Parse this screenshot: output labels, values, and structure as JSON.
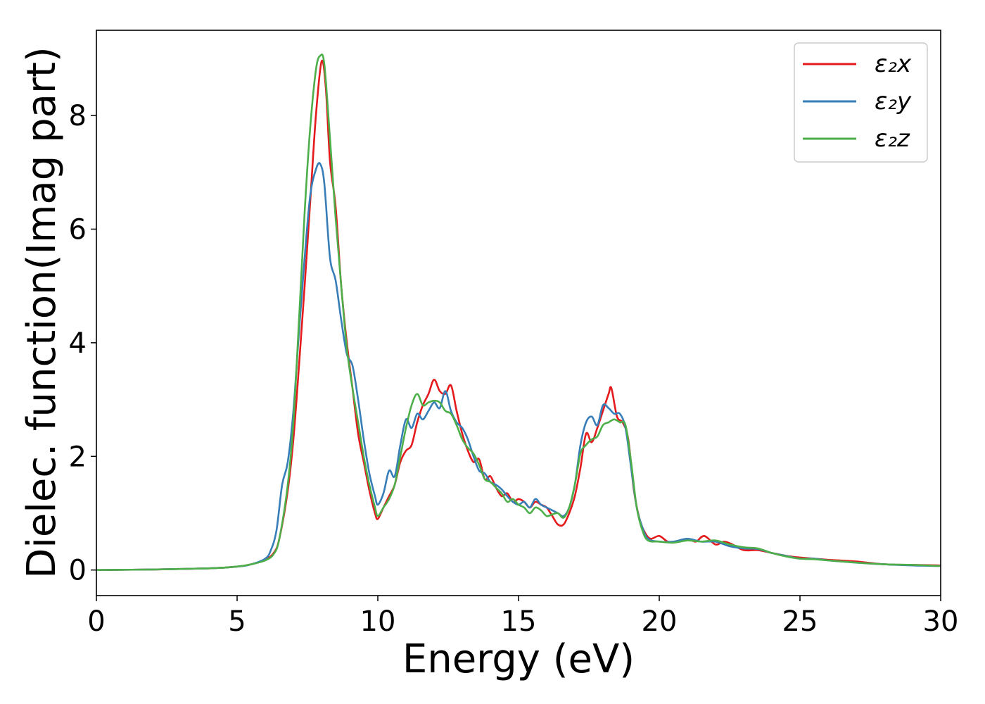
{
  "chart_data": {
    "type": "line",
    "title": "",
    "xlabel": "Energy (eV)",
    "ylabel": "Dielec. function(Imag part)",
    "xlim": [
      0,
      30
    ],
    "ylim": [
      -0.45,
      9.5
    ],
    "xticks": [
      0,
      5,
      10,
      15,
      20,
      25,
      30
    ],
    "yticks": [
      0,
      2,
      4,
      6,
      8
    ],
    "grid": false,
    "legend_position": "top-right",
    "series": [
      {
        "name": "ε₂x",
        "color": "#e41a1c",
        "points": [
          [
            0,
            0.0
          ],
          [
            2,
            0.01
          ],
          [
            4,
            0.03
          ],
          [
            5,
            0.06
          ],
          [
            5.5,
            0.1
          ],
          [
            6,
            0.18
          ],
          [
            6.3,
            0.3
          ],
          [
            6.5,
            0.55
          ],
          [
            6.8,
            1.4
          ],
          [
            7,
            2.3
          ],
          [
            7.2,
            3.6
          ],
          [
            7.4,
            5.0
          ],
          [
            7.6,
            6.5
          ],
          [
            7.8,
            8.0
          ],
          [
            8.0,
            8.95
          ],
          [
            8.15,
            8.5
          ],
          [
            8.3,
            7.2
          ],
          [
            8.5,
            6.4
          ],
          [
            8.7,
            5.0
          ],
          [
            8.9,
            4.0
          ],
          [
            9.1,
            3.2
          ],
          [
            9.3,
            2.4
          ],
          [
            9.5,
            1.9
          ],
          [
            9.7,
            1.4
          ],
          [
            9.9,
            1.0
          ],
          [
            10.0,
            0.9
          ],
          [
            10.2,
            1.1
          ],
          [
            10.4,
            1.3
          ],
          [
            10.6,
            1.5
          ],
          [
            10.8,
            1.9
          ],
          [
            11.0,
            2.1
          ],
          [
            11.2,
            2.2
          ],
          [
            11.4,
            2.6
          ],
          [
            11.6,
            2.9
          ],
          [
            11.8,
            3.1
          ],
          [
            12.0,
            3.35
          ],
          [
            12.2,
            3.15
          ],
          [
            12.4,
            3.1
          ],
          [
            12.6,
            3.25
          ],
          [
            12.8,
            2.8
          ],
          [
            13.0,
            2.4
          ],
          [
            13.2,
            2.1
          ],
          [
            13.4,
            1.9
          ],
          [
            13.6,
            1.95
          ],
          [
            13.8,
            1.6
          ],
          [
            14.0,
            1.65
          ],
          [
            14.2,
            1.45
          ],
          [
            14.4,
            1.3
          ],
          [
            14.6,
            1.35
          ],
          [
            14.8,
            1.2
          ],
          [
            15.0,
            1.25
          ],
          [
            15.2,
            1.2
          ],
          [
            15.4,
            1.1
          ],
          [
            15.6,
            1.2
          ],
          [
            15.8,
            1.15
          ],
          [
            16.0,
            1.1
          ],
          [
            16.2,
            0.95
          ],
          [
            16.4,
            0.8
          ],
          [
            16.6,
            0.8
          ],
          [
            16.8,
            1.0
          ],
          [
            17.0,
            1.3
          ],
          [
            17.2,
            1.8
          ],
          [
            17.4,
            2.4
          ],
          [
            17.6,
            2.25
          ],
          [
            17.8,
            2.5
          ],
          [
            18.0,
            2.8
          ],
          [
            18.2,
            3.1
          ],
          [
            18.3,
            3.2
          ],
          [
            18.5,
            2.7
          ],
          [
            18.7,
            2.6
          ],
          [
            18.9,
            2.3
          ],
          [
            19.1,
            1.4
          ],
          [
            19.3,
            0.9
          ],
          [
            19.5,
            0.65
          ],
          [
            19.7,
            0.55
          ],
          [
            20.0,
            0.6
          ],
          [
            20.3,
            0.5
          ],
          [
            20.6,
            0.5
          ],
          [
            21.0,
            0.55
          ],
          [
            21.3,
            0.5
          ],
          [
            21.6,
            0.6
          ],
          [
            22.0,
            0.45
          ],
          [
            22.3,
            0.5
          ],
          [
            22.6,
            0.45
          ],
          [
            23.0,
            0.35
          ],
          [
            23.5,
            0.35
          ],
          [
            24.0,
            0.3
          ],
          [
            24.5,
            0.25
          ],
          [
            25.0,
            0.22
          ],
          [
            25.5,
            0.2
          ],
          [
            26.0,
            0.18
          ],
          [
            27.0,
            0.15
          ],
          [
            28.0,
            0.1
          ],
          [
            29.0,
            0.09
          ],
          [
            30.0,
            0.08
          ]
        ]
      },
      {
        "name": "ε₂y",
        "color": "#377eb8",
        "points": [
          [
            0,
            0.0
          ],
          [
            2,
            0.01
          ],
          [
            4,
            0.03
          ],
          [
            5,
            0.06
          ],
          [
            5.5,
            0.1
          ],
          [
            6,
            0.2
          ],
          [
            6.2,
            0.35
          ],
          [
            6.4,
            0.7
          ],
          [
            6.6,
            1.5
          ],
          [
            6.8,
            1.9
          ],
          [
            7.0,
            2.8
          ],
          [
            7.2,
            4.2
          ],
          [
            7.4,
            5.5
          ],
          [
            7.6,
            6.6
          ],
          [
            7.8,
            7.05
          ],
          [
            7.95,
            7.15
          ],
          [
            8.1,
            6.8
          ],
          [
            8.3,
            5.5
          ],
          [
            8.5,
            5.1
          ],
          [
            8.7,
            4.4
          ],
          [
            8.9,
            3.8
          ],
          [
            9.1,
            3.6
          ],
          [
            9.3,
            3.0
          ],
          [
            9.5,
            2.3
          ],
          [
            9.7,
            1.7
          ],
          [
            9.9,
            1.3
          ],
          [
            10.0,
            1.15
          ],
          [
            10.2,
            1.35
          ],
          [
            10.4,
            1.75
          ],
          [
            10.6,
            1.65
          ],
          [
            10.8,
            2.2
          ],
          [
            11.0,
            2.65
          ],
          [
            11.2,
            2.5
          ],
          [
            11.4,
            2.75
          ],
          [
            11.6,
            2.65
          ],
          [
            11.8,
            2.8
          ],
          [
            12.0,
            2.95
          ],
          [
            12.2,
            2.85
          ],
          [
            12.4,
            3.15
          ],
          [
            12.6,
            2.8
          ],
          [
            12.8,
            2.6
          ],
          [
            13.0,
            2.5
          ],
          [
            13.2,
            2.3
          ],
          [
            13.4,
            2.0
          ],
          [
            13.6,
            1.75
          ],
          [
            13.8,
            1.7
          ],
          [
            14.0,
            1.55
          ],
          [
            14.2,
            1.5
          ],
          [
            14.4,
            1.42
          ],
          [
            14.6,
            1.3
          ],
          [
            14.8,
            1.2
          ],
          [
            15.0,
            1.15
          ],
          [
            15.2,
            1.2
          ],
          [
            15.4,
            1.1
          ],
          [
            15.6,
            1.25
          ],
          [
            15.8,
            1.15
          ],
          [
            16.0,
            1.1
          ],
          [
            16.2,
            1.05
          ],
          [
            16.4,
            1.0
          ],
          [
            16.6,
            0.95
          ],
          [
            16.8,
            1.1
          ],
          [
            17.0,
            1.5
          ],
          [
            17.2,
            2.2
          ],
          [
            17.4,
            2.6
          ],
          [
            17.6,
            2.7
          ],
          [
            17.8,
            2.55
          ],
          [
            18.0,
            2.9
          ],
          [
            18.2,
            2.85
          ],
          [
            18.4,
            2.75
          ],
          [
            18.6,
            2.75
          ],
          [
            18.8,
            2.5
          ],
          [
            19.0,
            1.8
          ],
          [
            19.2,
            1.1
          ],
          [
            19.4,
            0.75
          ],
          [
            19.6,
            0.55
          ],
          [
            20.0,
            0.5
          ],
          [
            20.5,
            0.5
          ],
          [
            21.0,
            0.55
          ],
          [
            21.5,
            0.5
          ],
          [
            22.0,
            0.5
          ],
          [
            22.5,
            0.42
          ],
          [
            23.0,
            0.38
          ],
          [
            23.5,
            0.37
          ],
          [
            24.0,
            0.3
          ],
          [
            24.5,
            0.25
          ],
          [
            25.0,
            0.2
          ],
          [
            25.5,
            0.2
          ],
          [
            26.0,
            0.17
          ],
          [
            27.0,
            0.13
          ],
          [
            28.0,
            0.1
          ],
          [
            29.0,
            0.08
          ],
          [
            30.0,
            0.07
          ]
        ]
      },
      {
        "name": "ε₂z",
        "color": "#4daf4a",
        "points": [
          [
            0,
            0.0
          ],
          [
            2,
            0.01
          ],
          [
            4,
            0.03
          ],
          [
            5,
            0.06
          ],
          [
            5.5,
            0.1
          ],
          [
            6,
            0.17
          ],
          [
            6.3,
            0.28
          ],
          [
            6.5,
            0.55
          ],
          [
            6.8,
            1.5
          ],
          [
            7.0,
            2.6
          ],
          [
            7.2,
            4.4
          ],
          [
            7.4,
            6.3
          ],
          [
            7.6,
            7.8
          ],
          [
            7.8,
            8.8
          ],
          [
            7.95,
            9.05
          ],
          [
            8.1,
            8.9
          ],
          [
            8.3,
            7.6
          ],
          [
            8.5,
            6.2
          ],
          [
            8.7,
            5.0
          ],
          [
            8.9,
            3.9
          ],
          [
            9.1,
            3.2
          ],
          [
            9.3,
            2.6
          ],
          [
            9.5,
            2.0
          ],
          [
            9.7,
            1.5
          ],
          [
            9.9,
            1.1
          ],
          [
            10.0,
            0.95
          ],
          [
            10.2,
            1.1
          ],
          [
            10.4,
            1.25
          ],
          [
            10.6,
            1.5
          ],
          [
            10.8,
            2.0
          ],
          [
            11.0,
            2.5
          ],
          [
            11.2,
            2.9
          ],
          [
            11.4,
            3.1
          ],
          [
            11.6,
            2.9
          ],
          [
            11.8,
            2.95
          ],
          [
            12.0,
            2.98
          ],
          [
            12.2,
            2.95
          ],
          [
            12.4,
            2.8
          ],
          [
            12.6,
            2.75
          ],
          [
            12.8,
            2.55
          ],
          [
            13.0,
            2.3
          ],
          [
            13.2,
            2.15
          ],
          [
            13.4,
            2.05
          ],
          [
            13.6,
            1.85
          ],
          [
            13.8,
            1.6
          ],
          [
            14.0,
            1.55
          ],
          [
            14.2,
            1.45
          ],
          [
            14.4,
            1.35
          ],
          [
            14.6,
            1.2
          ],
          [
            14.8,
            1.25
          ],
          [
            15.0,
            1.15
          ],
          [
            15.2,
            1.1
          ],
          [
            15.4,
            1.0
          ],
          [
            15.6,
            1.1
          ],
          [
            15.8,
            1.05
          ],
          [
            16.0,
            0.95
          ],
          [
            16.2,
            0.98
          ],
          [
            16.4,
            1.0
          ],
          [
            16.6,
            0.92
          ],
          [
            16.8,
            1.1
          ],
          [
            17.0,
            1.5
          ],
          [
            17.2,
            2.05
          ],
          [
            17.4,
            2.2
          ],
          [
            17.6,
            2.3
          ],
          [
            17.8,
            2.35
          ],
          [
            18.0,
            2.55
          ],
          [
            18.2,
            2.6
          ],
          [
            18.4,
            2.65
          ],
          [
            18.6,
            2.6
          ],
          [
            18.8,
            2.55
          ],
          [
            19.0,
            1.9
          ],
          [
            19.2,
            1.1
          ],
          [
            19.4,
            0.7
          ],
          [
            19.6,
            0.52
          ],
          [
            20.0,
            0.5
          ],
          [
            20.5,
            0.48
          ],
          [
            21.0,
            0.52
          ],
          [
            21.5,
            0.5
          ],
          [
            22.0,
            0.52
          ],
          [
            22.5,
            0.45
          ],
          [
            23.0,
            0.4
          ],
          [
            23.5,
            0.38
          ],
          [
            24.0,
            0.3
          ],
          [
            24.5,
            0.24
          ],
          [
            25.0,
            0.2
          ],
          [
            25.5,
            0.19
          ],
          [
            26.0,
            0.17
          ],
          [
            27.0,
            0.13
          ],
          [
            28.0,
            0.1
          ],
          [
            29.0,
            0.09
          ],
          [
            30.0,
            0.07
          ]
        ]
      }
    ]
  }
}
